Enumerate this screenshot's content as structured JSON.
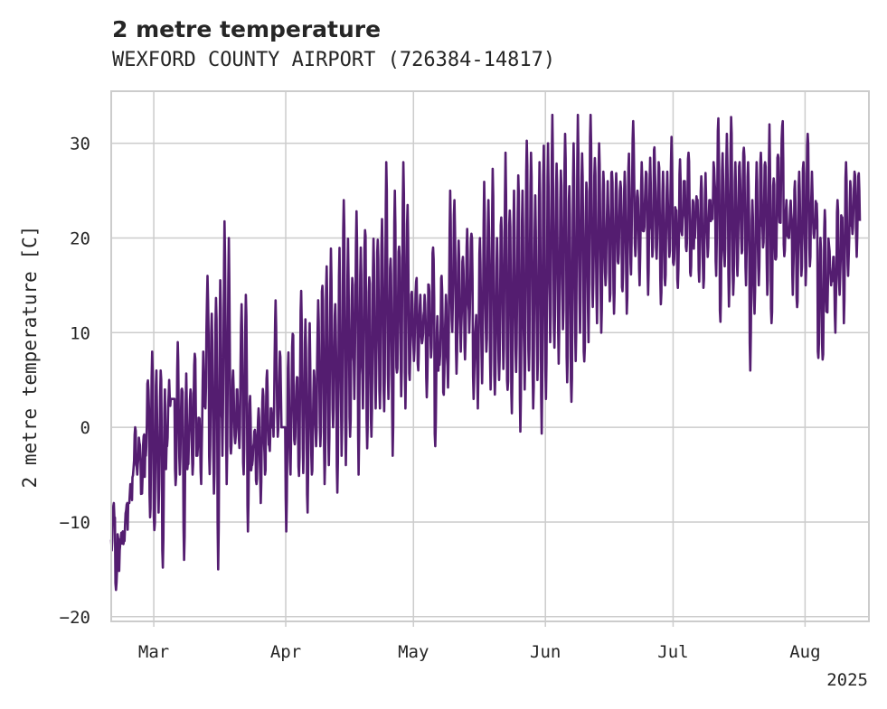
{
  "chart_data": {
    "type": "line",
    "title": "2 metre temperature",
    "subtitle": "WEXFORD COUNTY AIRPORT (726384-14817)",
    "xlabel": "",
    "ylabel": "2 metre temperature [C]",
    "xlim": [
      "2025-02-19",
      "2025-08-16"
    ],
    "ylim": [
      -20.5,
      35.5
    ],
    "y_ticks": [
      -20,
      -10,
      0,
      10,
      20,
      30
    ],
    "x_ticks": [
      {
        "date": "2025-03-01",
        "label": "Mar"
      },
      {
        "date": "2025-04-01",
        "label": "Apr"
      },
      {
        "date": "2025-05-01",
        "label": "May"
      },
      {
        "date": "2025-06-01",
        "label": "Jun"
      },
      {
        "date": "2025-07-01",
        "label": "Jul"
      },
      {
        "date": "2025-08-01",
        "label": "Aug"
      }
    ],
    "year_label": "2025",
    "grid": true,
    "legend": "none",
    "series": [
      {
        "color": "#541d70",
        "x": [
          "2025-02-19",
          "2025-02-20",
          "2025-02-21",
          "2025-02-22",
          "2025-02-23",
          "2025-02-24",
          "2025-02-25",
          "2025-02-26",
          "2025-02-27",
          "2025-02-28",
          "2025-03-01",
          "2025-03-02",
          "2025-03-03",
          "2025-03-04",
          "2025-03-05",
          "2025-03-06",
          "2025-03-07",
          "2025-03-08",
          "2025-03-09",
          "2025-03-10",
          "2025-03-11",
          "2025-03-12",
          "2025-03-13",
          "2025-03-14",
          "2025-03-15",
          "2025-03-16",
          "2025-03-17",
          "2025-03-18",
          "2025-03-19",
          "2025-03-20",
          "2025-03-21",
          "2025-03-22",
          "2025-03-23",
          "2025-03-24",
          "2025-03-25",
          "2025-03-26",
          "2025-03-27",
          "2025-03-28",
          "2025-03-29",
          "2025-03-30",
          "2025-03-31",
          "2025-04-01",
          "2025-04-02",
          "2025-04-03",
          "2025-04-04",
          "2025-04-05",
          "2025-04-06",
          "2025-04-07",
          "2025-04-08",
          "2025-04-09",
          "2025-04-10",
          "2025-04-11",
          "2025-04-12",
          "2025-04-13",
          "2025-04-14",
          "2025-04-15",
          "2025-04-16",
          "2025-04-17",
          "2025-04-18",
          "2025-04-19",
          "2025-04-20",
          "2025-04-21",
          "2025-04-22",
          "2025-04-23",
          "2025-04-24",
          "2025-04-25",
          "2025-04-26",
          "2025-04-27",
          "2025-04-28",
          "2025-04-29",
          "2025-04-30",
          "2025-05-01",
          "2025-05-02",
          "2025-05-03",
          "2025-05-04",
          "2025-05-05",
          "2025-05-06",
          "2025-05-07",
          "2025-05-08",
          "2025-05-09",
          "2025-05-10",
          "2025-05-11",
          "2025-05-12",
          "2025-05-13",
          "2025-05-14",
          "2025-05-15",
          "2025-05-16",
          "2025-05-17",
          "2025-05-18",
          "2025-05-19",
          "2025-05-20",
          "2025-05-21",
          "2025-05-22",
          "2025-05-23",
          "2025-05-24",
          "2025-05-25",
          "2025-05-26",
          "2025-05-27",
          "2025-05-28",
          "2025-05-29",
          "2025-05-30",
          "2025-05-31",
          "2025-06-01",
          "2025-06-02",
          "2025-06-03",
          "2025-06-04",
          "2025-06-05",
          "2025-06-06",
          "2025-06-07",
          "2025-06-08",
          "2025-06-09",
          "2025-06-10",
          "2025-06-11",
          "2025-06-12",
          "2025-06-13",
          "2025-06-14",
          "2025-06-15",
          "2025-06-16",
          "2025-06-17",
          "2025-06-18",
          "2025-06-19",
          "2025-06-20",
          "2025-06-21",
          "2025-06-22",
          "2025-06-23",
          "2025-06-24",
          "2025-06-25",
          "2025-06-26",
          "2025-06-27",
          "2025-06-28",
          "2025-06-29",
          "2025-06-30",
          "2025-07-01",
          "2025-07-02",
          "2025-07-03",
          "2025-07-04",
          "2025-07-05",
          "2025-07-06",
          "2025-07-07",
          "2025-07-08",
          "2025-07-09",
          "2025-07-10",
          "2025-07-11",
          "2025-07-12",
          "2025-07-13",
          "2025-07-14",
          "2025-07-15",
          "2025-07-16",
          "2025-07-17",
          "2025-07-18",
          "2025-07-19",
          "2025-07-20",
          "2025-07-21",
          "2025-07-22",
          "2025-07-23",
          "2025-07-24",
          "2025-07-25",
          "2025-07-26",
          "2025-07-27",
          "2025-07-28",
          "2025-07-29",
          "2025-07-30",
          "2025-07-31",
          "2025-08-01",
          "2025-08-02",
          "2025-08-03",
          "2025-08-04",
          "2025-08-05",
          "2025-08-06",
          "2025-08-07",
          "2025-08-08",
          "2025-08-09",
          "2025-08-10",
          "2025-08-11",
          "2025-08-12",
          "2025-08-13",
          "2025-08-14",
          "2025-08-15"
        ],
        "min": [
          -13,
          -18,
          -13,
          -12,
          -8,
          -6,
          -5,
          -8,
          -3,
          -10,
          -12,
          -9,
          -15,
          -2,
          3,
          -7,
          -5,
          -14,
          -4,
          -5,
          -3,
          -6,
          2,
          -5,
          -7,
          -15,
          -3,
          -6,
          -4,
          -2,
          -3,
          -6,
          -11,
          -4,
          -6,
          -8,
          -5,
          -3,
          -1,
          -1,
          0,
          -11,
          -5,
          -3,
          -6,
          -5,
          -9,
          -5,
          -2,
          -2,
          -6,
          -4,
          0,
          -7,
          -3,
          -4,
          -1,
          3,
          -5,
          2,
          -3,
          -1,
          2,
          2,
          1,
          3,
          -3,
          5,
          3,
          2,
          5,
          7,
          6,
          8,
          2,
          7,
          -2,
          6,
          3,
          4,
          10,
          5,
          8,
          6,
          10,
          3,
          2,
          4,
          8,
          4,
          3,
          5,
          6,
          3,
          1,
          5,
          -1,
          4,
          6,
          2,
          5,
          -1,
          3,
          9,
          8,
          6,
          10,
          4,
          2,
          7,
          10,
          6,
          9,
          12,
          11,
          10,
          15,
          13,
          12,
          17,
          14,
          12,
          16,
          18,
          15,
          20,
          14,
          18,
          17,
          13,
          15,
          18,
          16,
          14,
          20,
          18,
          16,
          20,
          15,
          14,
          18,
          22,
          16,
          10,
          17,
          12,
          14,
          16,
          18,
          15,
          6,
          12,
          15,
          19,
          14,
          11,
          17,
          21,
          18,
          20,
          14,
          12,
          16,
          15,
          17,
          20,
          7,
          6,
          12,
          15,
          10,
          14,
          11,
          16,
          20,
          18,
          12,
          19,
          21,
          18
        ],
        "max": [
          -8,
          -11,
          -11,
          -8,
          -6,
          0,
          -1,
          0,
          5,
          8,
          6,
          6,
          4,
          5,
          -6,
          9,
          5,
          6,
          4,
          9,
          1,
          8,
          16,
          12,
          14,
          16,
          22,
          20,
          6,
          4,
          13,
          14,
          4,
          0,
          2,
          5,
          6,
          2,
          14,
          8,
          -2,
          8,
          11,
          6,
          15,
          12,
          11,
          6,
          14,
          16,
          17,
          19,
          13,
          19,
          24,
          20,
          17,
          23,
          19,
          22,
          17,
          20,
          21,
          22,
          28,
          19,
          25,
          20,
          28,
          24,
          15,
          16,
          14,
          14,
          16,
          19,
          12,
          16,
          14,
          25,
          24,
          20,
          18,
          22,
          21,
          12,
          20,
          26,
          24,
          28,
          20,
          23,
          29,
          24,
          25,
          27,
          25,
          31,
          29,
          25,
          28,
          30,
          30,
          33,
          29,
          28,
          31,
          26,
          30,
          33,
          30,
          27,
          33,
          29,
          30,
          27,
          26,
          28,
          28,
          26,
          27,
          29,
          33,
          25,
          28,
          27,
          29,
          30,
          28,
          27,
          27,
          31,
          24,
          29,
          26,
          29,
          24,
          25,
          27,
          27,
          24,
          28,
          33,
          30,
          31,
          33,
          28,
          29,
          30,
          28,
          24,
          28,
          29,
          28,
          32,
          27,
          30,
          33,
          24,
          24,
          26,
          27,
          28,
          31,
          27,
          24,
          21,
          23,
          20,
          18,
          24,
          23,
          28,
          26,
          27,
          27
        ]
      }
    ]
  }
}
